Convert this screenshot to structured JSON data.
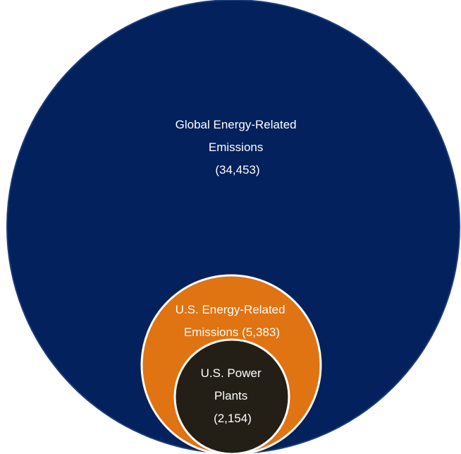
{
  "chart_data": {
    "type": "nested-bubble",
    "units_shown": "none",
    "series": [
      {
        "label_lines": [
          "Global Energy-Related",
          "Emissions",
          "(34,453)"
        ],
        "value": 34453,
        "color": "#03215c"
      },
      {
        "label_lines": [
          "U.S. Energy-Related",
          "Emissions (5,383)"
        ],
        "value": 5383,
        "color": "#e07312"
      },
      {
        "label_lines": [
          "U.S. Power",
          "Plants",
          "(2,154)"
        ],
        "value": 2154,
        "color": "#231f16"
      }
    ],
    "outline_color": "#ffffff",
    "border_color": "#1c3b78"
  }
}
